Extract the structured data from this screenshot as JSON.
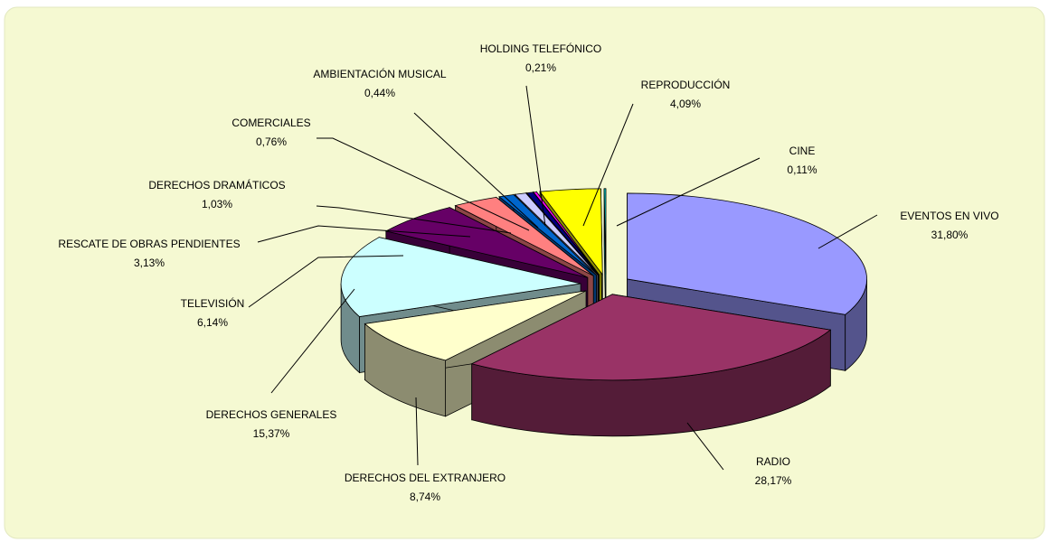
{
  "chart_data": {
    "type": "pie3d",
    "categories": [
      "EVENTOS EN VIVO",
      "RADIO",
      "DERECHOS DEL EXTRANJERO",
      "DERECHOS GENERALES",
      "TELEVISIÓN",
      "RESCATE DE OBRAS PENDIENTES",
      "DERECHOS DRAMÁTICOS",
      "COMERCIALES",
      "AMBIENTACIÓN  MUSICAL",
      "HOLDING TELEFÓNICO",
      "REPRODUCCIÓN",
      "CINE"
    ],
    "values": [
      31.8,
      28.17,
      8.74,
      15.37,
      6.14,
      3.13,
      1.03,
      0.76,
      0.44,
      0.21,
      4.09,
      0.11
    ],
    "value_labels": [
      "31,80%",
      "28,17%",
      "8,74%",
      "15,37%",
      "6,14%",
      "3,13%",
      "1,03%",
      "0,76%",
      "0,44%",
      "0,21%",
      "4,09%",
      "0,11%"
    ],
    "colors": [
      "#9999ff",
      "#993366",
      "#ffffcc",
      "#ccffff",
      "#660066",
      "#ff8080",
      "#0066cc",
      "#ccccff",
      "#000080",
      "#ff00ff",
      "#ffff00",
      "#00ffff"
    ]
  }
}
